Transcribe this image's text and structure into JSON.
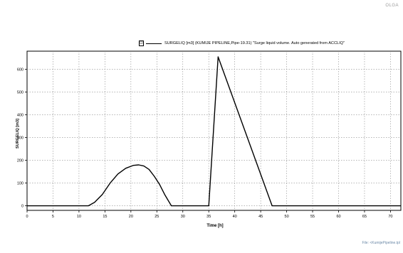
{
  "corner_text": "OLGA",
  "file_text": "File: <KumijePipeline.tpl",
  "legend": {
    "checkbox": "☑",
    "text": "SURGELIQ [m3] (KUMIJE PIPELINE,Pipe-19.31) \"Surge liquid volume. Auto generated from ACCLIQ\""
  },
  "chart_data": {
    "type": "line",
    "title": "",
    "xlabel": "Time [h]",
    "ylabel": "SURGELIQ [m3]",
    "xlim": [
      0,
      72
    ],
    "ylim": [
      -20,
      680
    ],
    "xticks": [
      0,
      5,
      10,
      15,
      20,
      25,
      30,
      35,
      40,
      45,
      50,
      55,
      60,
      65,
      70
    ],
    "yticks": [
      0,
      100,
      200,
      300,
      400,
      500,
      600
    ],
    "grid": true,
    "series": [
      {
        "name": "SURGELIQ [m3] (KUMIJE PIPELINE,Pipe-19.31)",
        "color": "#000000",
        "x": [
          0,
          11.8,
          13,
          14.5,
          16,
          17.5,
          19,
          20.5,
          21.5,
          22.5,
          23.5,
          24.5,
          25.5,
          26.5,
          27.8,
          35,
          36.8,
          47.2,
          72
        ],
        "y": [
          0,
          0,
          15,
          50,
          100,
          140,
          165,
          178,
          180,
          175,
          160,
          130,
          95,
          50,
          0,
          0,
          655,
          0,
          0
        ]
      }
    ]
  }
}
